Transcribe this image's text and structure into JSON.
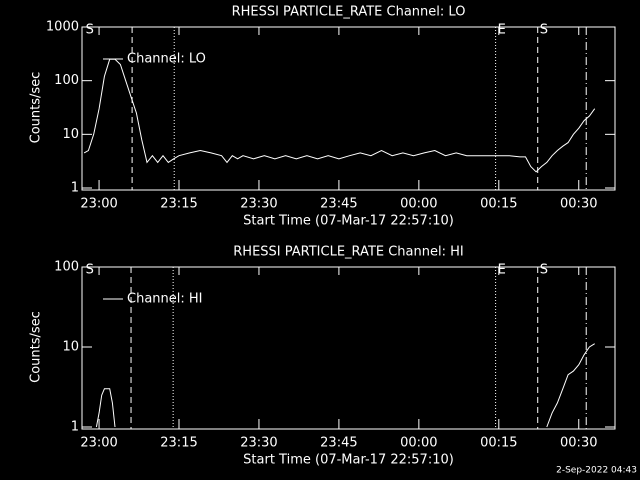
{
  "chart_data": [
    {
      "type": "line",
      "title": "RHESSI PARTICLE_RATE Channel: LO",
      "x_label": "Start Time (07-Mar-17 22:57:10)",
      "y_label": "Counts/sec",
      "log_y": true,
      "xlim": [
        -3.2,
        96.8
      ],
      "ylim": [
        1,
        1000
      ],
      "xticks": [
        {
          "value": 0,
          "label": "23:00"
        },
        {
          "value": 15,
          "label": "23:15"
        },
        {
          "value": 30,
          "label": "23:30"
        },
        {
          "value": 45,
          "label": "23:45"
        },
        {
          "value": 60,
          "label": "00:00"
        },
        {
          "value": 75,
          "label": "00:15"
        },
        {
          "value": 90,
          "label": "00:30"
        }
      ],
      "yticks": [
        1,
        10,
        100,
        1000
      ],
      "legend": "top-left",
      "markers": [
        {
          "x": 6.2,
          "style": "dashed"
        },
        {
          "x": 14.1,
          "style": "dotted"
        },
        {
          "x": 74.4,
          "style": "dotted"
        },
        {
          "x": 82.3,
          "style": "dashed"
        },
        {
          "x": 91.4,
          "style": "dashdot"
        }
      ],
      "flags": [
        {
          "x": -2.9,
          "label": "S"
        },
        {
          "x": 74.4,
          "label": "E"
        },
        {
          "x": 82.3,
          "label": "S"
        }
      ],
      "series": [
        {
          "name": "Channel: LO",
          "color": "#ffffff",
          "x": [
            -2.8,
            -2,
            -1,
            0,
            1,
            2,
            3,
            4,
            5,
            6,
            7,
            8,
            9,
            10,
            11,
            12,
            13,
            14,
            15,
            17,
            19,
            21,
            23,
            24,
            25,
            26,
            27,
            29,
            31,
            33,
            35,
            37,
            39,
            41,
            43,
            45,
            47,
            49,
            51,
            53,
            55,
            57,
            59,
            61,
            63,
            65,
            67,
            69,
            71,
            73,
            75,
            77,
            79,
            80,
            81,
            82,
            83,
            84,
            85,
            86,
            87,
            88,
            89,
            90,
            91,
            92,
            93
          ],
          "values": [
            4.5,
            5,
            10,
            30,
            120,
            250,
            250,
            200,
            100,
            50,
            25,
            8,
            3,
            4,
            3,
            4,
            3,
            3.5,
            4,
            4.5,
            5,
            4.5,
            4,
            3,
            4,
            3.5,
            4,
            3.5,
            4,
            3.5,
            4,
            3.5,
            4,
            3.5,
            4,
            3.5,
            4,
            4.5,
            4,
            5,
            4,
            4.5,
            4,
            4.5,
            5,
            4,
            4.5,
            4,
            4,
            4,
            4,
            4,
            3.8,
            3.8,
            2.5,
            2,
            2.5,
            3,
            4,
            5,
            6,
            7,
            10,
            13,
            18,
            22,
            30
          ]
        }
      ]
    },
    {
      "type": "line",
      "title": "RHESSI PARTICLE_RATE Channel: HI",
      "x_label": "Start Time (07-Mar-17 22:57:10)",
      "y_label": "Counts/sec",
      "log_y": true,
      "xlim": [
        -3.2,
        96.8
      ],
      "ylim": [
        1,
        100
      ],
      "xticks": [
        {
          "value": 0,
          "label": "23:00"
        },
        {
          "value": 15,
          "label": "23:15"
        },
        {
          "value": 30,
          "label": "23:30"
        },
        {
          "value": 45,
          "label": "23:45"
        },
        {
          "value": 60,
          "label": "00:00"
        },
        {
          "value": 75,
          "label": "00:15"
        },
        {
          "value": 90,
          "label": "00:30"
        }
      ],
      "yticks": [
        1,
        10,
        100
      ],
      "legend": "top-left",
      "markers": [
        {
          "x": 6.0,
          "style": "dashed"
        },
        {
          "x": 13.9,
          "style": "dotted"
        },
        {
          "x": 74.4,
          "style": "dotted"
        },
        {
          "x": 82.3,
          "style": "dashed"
        },
        {
          "x": 91.4,
          "style": "dashdot"
        }
      ],
      "flags": [
        {
          "x": -2.9,
          "label": "S"
        },
        {
          "x": 74.4,
          "label": "E"
        },
        {
          "x": 82.3,
          "label": "S"
        }
      ],
      "series": [
        {
          "name": "Channel: HI",
          "color": "#ffffff",
          "x": [
            -0.5,
            0,
            0.5,
            1,
            2,
            2.5,
            3,
            40,
            84,
            85,
            86,
            87,
            88,
            89,
            90,
            91,
            92,
            93
          ],
          "values": [
            1,
            1.5,
            2.5,
            3,
            3,
            2,
            1,
            null,
            1,
            1.5,
            2,
            3,
            4.5,
            5,
            6,
            8,
            10,
            11
          ]
        }
      ]
    }
  ],
  "footer": "2-Sep-2022 04:43"
}
